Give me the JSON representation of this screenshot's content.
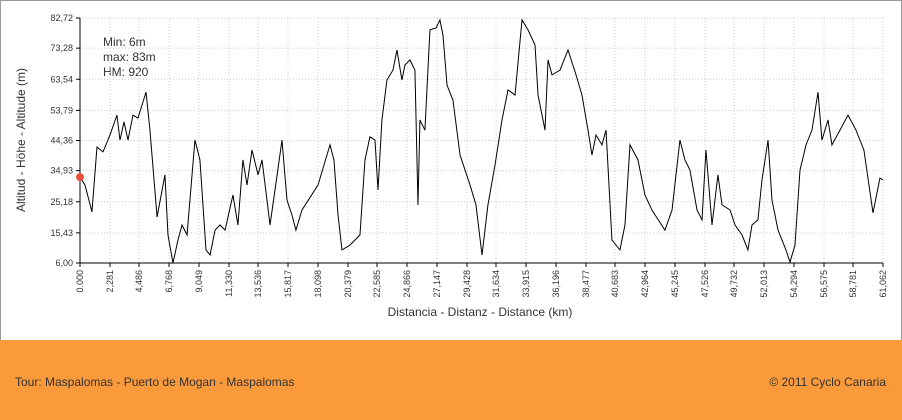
{
  "chart_data": {
    "type": "line",
    "ylabel": "Altitud - Höhe - Altitude (m)",
    "xlabel": "Distancia - Distanz - Distance (km)",
    "annotations": [
      "Min: 6m",
      "max: 83m",
      "HM: 920"
    ],
    "xlim": [
      0,
      61.062
    ],
    "ylim": [
      6,
      82.72
    ],
    "grid": true,
    "yticks": [
      {
        "value": 6,
        "label": "6,00"
      },
      {
        "value": 15.43,
        "label": "15,43"
      },
      {
        "value": 25.18,
        "label": "25,18"
      },
      {
        "value": 34.93,
        "label": "34,93"
      },
      {
        "value": 44.36,
        "label": "44,36"
      },
      {
        "value": 53.79,
        "label": "53,79"
      },
      {
        "value": 63.54,
        "label": "63,54"
      },
      {
        "value": 73.28,
        "label": "73,28"
      },
      {
        "value": 82.72,
        "label": "82,72"
      }
    ],
    "xticks": [
      {
        "value": 0,
        "label": "0.000"
      },
      {
        "value": 2.281,
        "label": "2,281"
      },
      {
        "value": 4.486,
        "label": "4,486"
      },
      {
        "value": 6.768,
        "label": "6,768"
      },
      {
        "value": 9.049,
        "label": "9,049"
      },
      {
        "value": 11.33,
        "label": "11,330"
      },
      {
        "value": 13.536,
        "label": "13,536"
      },
      {
        "value": 15.817,
        "label": "15,817"
      },
      {
        "value": 18.098,
        "label": "18,098"
      },
      {
        "value": 20.379,
        "label": "20,379"
      },
      {
        "value": 22.585,
        "label": "22,585"
      },
      {
        "value": 24.866,
        "label": "24,866"
      },
      {
        "value": 27.147,
        "label": "27,147"
      },
      {
        "value": 29.428,
        "label": "29,428"
      },
      {
        "value": 31.634,
        "label": "31,634"
      },
      {
        "value": 33.915,
        "label": "33,915"
      },
      {
        "value": 36.196,
        "label": "36,196"
      },
      {
        "value": 38.477,
        "label": "38,477"
      },
      {
        "value": 40.683,
        "label": "40,683"
      },
      {
        "value": 42.964,
        "label": "42,964"
      },
      {
        "value": 45.245,
        "label": "45,245"
      },
      {
        "value": 47.526,
        "label": "47,526"
      },
      {
        "value": 49.732,
        "label": "49,732"
      },
      {
        "value": 52.013,
        "label": "52,013"
      },
      {
        "value": 54.294,
        "label": "54,294"
      },
      {
        "value": 56.575,
        "label": "56,575"
      },
      {
        "value": 58.781,
        "label": "58,781"
      },
      {
        "value": 61.062,
        "label": "61,062"
      }
    ],
    "x": [
      0,
      0.38,
      0.91,
      1.29,
      1.75,
      2.28,
      2.81,
      3.04,
      3.35,
      3.65,
      4.03,
      4.41,
      5.02,
      5.32,
      5.86,
      6.46,
      6.69,
      7.07,
      7.45,
      7.76,
      8.14,
      8.36,
      8.74,
      9.12,
      9.58,
      9.89,
      10.27,
      10.65,
      11.03,
      11.63,
      12.01,
      12.39,
      12.7,
      13.08,
      13.54,
      13.84,
      14.45,
      14.83,
      15.36,
      15.74,
      16.12,
      16.42,
      16.88,
      18.1,
      19.01,
      19.31,
      19.62,
      19.92,
      20.53,
      21.29,
      21.67,
      22.05,
      22.43,
      22.66,
      22.96,
      23.34,
      23.8,
      24.1,
      24.48,
      24.71,
      25.09,
      25.47,
      25.7,
      25.85,
      26.23,
      26.61,
      27.07,
      27.37,
      27.6,
      27.91,
      28.36,
      28.9,
      29.66,
      30.11,
      30.57,
      31.02,
      31.56,
      32.09,
      32.55,
      33.08,
      33.61,
      34.07,
      34.6,
      34.83,
      35.36,
      35.59,
      35.89,
      36.5,
      37.11,
      37.72,
      38.17,
      38.63,
      38.93,
      39.24,
      39.69,
      40,
      40.45,
      41.06,
      41.44,
      41.82,
      42.43,
      42.96,
      43.49,
      44.48,
      45.02,
      45.62,
      46,
      46.38,
      46.92,
      47.3,
      47.6,
      48.06,
      48.51,
      48.82,
      49.43,
      49.81,
      50.34,
      50.79,
      51.1,
      51.55,
      51.86,
      52.32,
      52.62,
      53.08,
      53.68,
      53.99,
      54.37,
      54.75,
      55.21,
      55.66,
      56.12,
      56.42,
      56.88,
      57.18,
      57.79,
      58.4,
      59.01,
      59.61,
      60.3,
      60.83,
      61.06
    ],
    "series": [
      {
        "color": "#000000",
        "values": [
          32.9,
          30.4,
          22,
          42.3,
          40.8,
          46.1,
          52.3,
          44.5,
          50.2,
          44.5,
          52.3,
          51.4,
          59.5,
          47.6,
          20.4,
          33.6,
          14.8,
          6,
          13.2,
          17.9,
          14.8,
          25.7,
          44.5,
          38.3,
          10.1,
          8.5,
          16.3,
          17.9,
          16.3,
          27.3,
          17.9,
          38.3,
          30.4,
          41.4,
          33.6,
          38.3,
          17.9,
          28.9,
          44.5,
          25.7,
          21,
          16.3,
          22.6,
          30.4,
          43,
          38.3,
          21,
          10.1,
          11.6,
          14.8,
          38.3,
          45.5,
          44.5,
          28.9,
          50.8,
          63.3,
          66.4,
          72.7,
          63.3,
          68,
          69.6,
          66.4,
          24.2,
          50.8,
          47.6,
          79,
          79.6,
          82.1,
          77.4,
          61.7,
          57,
          39.8,
          30.4,
          24.2,
          8.5,
          24.2,
          36.7,
          50.8,
          60.2,
          58.6,
          82.1,
          79,
          74.3,
          58.6,
          47.6,
          69.6,
          64.9,
          66.4,
          72.7,
          64.9,
          58.6,
          47.6,
          39.8,
          46.1,
          43,
          47.6,
          13.2,
          10.1,
          17.9,
          43,
          38.3,
          27.3,
          22.6,
          16.3,
          22.6,
          44.5,
          38.3,
          35.1,
          22.6,
          19.5,
          41.4,
          17.9,
          33.6,
          24.2,
          22.6,
          17.9,
          14.8,
          10.1,
          17.9,
          19.5,
          32,
          44.5,
          25.7,
          16.3,
          10.1,
          6.3,
          11.6,
          35.1,
          43,
          47.6,
          59.5,
          44.5,
          50.8,
          43,
          47.6,
          52.3,
          47.6,
          41.4,
          21.7,
          32.6,
          32
        ]
      }
    ],
    "marker": {
      "x": 0,
      "y": 32.9,
      "color": "#e8503a"
    }
  },
  "footer": {
    "left": "Tour: Maspalomas - Puerto de Mogan - Maspalomas",
    "right": "© 2011 Cyclo Canaria"
  }
}
